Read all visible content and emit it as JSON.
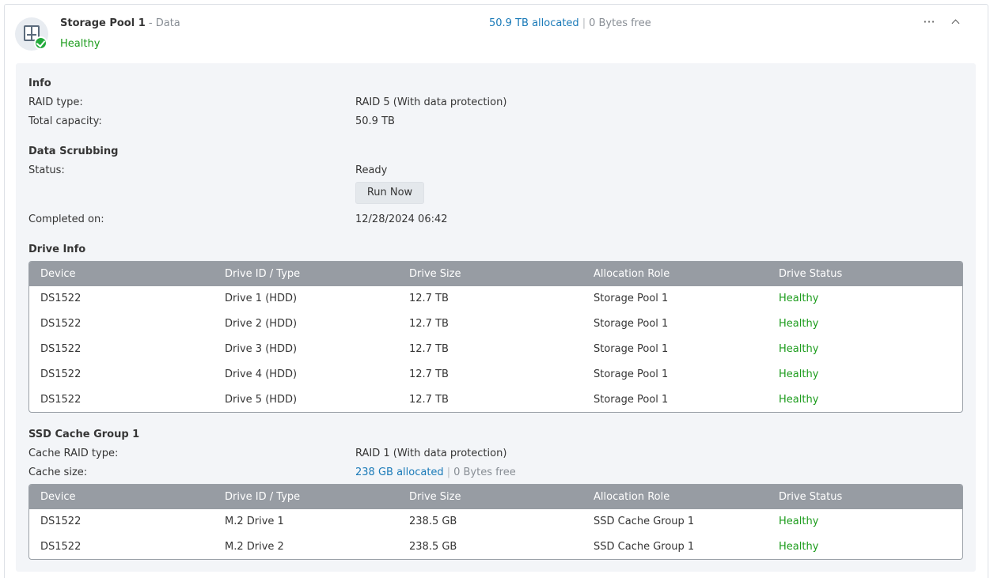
{
  "pool": {
    "name": "Storage Pool 1",
    "type_suffix": "- Data",
    "status": "Healthy",
    "allocated": "50.9 TB allocated",
    "separator": "|",
    "free": "0 Bytes free",
    "icon": "nas-icon",
    "status_icon": "check-circle-icon"
  },
  "header_actions": {
    "more": "···",
    "more_icon": "more-horizontal-icon",
    "collapse_icon": "chevron-up-icon"
  },
  "info": {
    "title": "Info",
    "raid_type_label": "RAID type:",
    "raid_type_value": "RAID 5 (With data protection)",
    "capacity_label": "Total capacity:",
    "capacity_value": "50.9 TB"
  },
  "scrubbing": {
    "title": "Data Scrubbing",
    "status_label": "Status:",
    "status_value": "Ready",
    "run_button": "Run Now",
    "completed_label": "Completed on:",
    "completed_value": "12/28/2024 06:42"
  },
  "drive_info": {
    "title": "Drive Info",
    "columns": [
      "Device",
      "Drive ID / Type",
      "Drive Size",
      "Allocation Role",
      "Drive Status"
    ],
    "rows": [
      [
        "DS1522",
        "Drive 1 (HDD)",
        "12.7 TB",
        "Storage Pool 1",
        "Healthy"
      ],
      [
        "DS1522",
        "Drive 2 (HDD)",
        "12.7 TB",
        "Storage Pool 1",
        "Healthy"
      ],
      [
        "DS1522",
        "Drive 3 (HDD)",
        "12.7 TB",
        "Storage Pool 1",
        "Healthy"
      ],
      [
        "DS1522",
        "Drive 4 (HDD)",
        "12.7 TB",
        "Storage Pool 1",
        "Healthy"
      ],
      [
        "DS1522",
        "Drive 5 (HDD)",
        "12.7 TB",
        "Storage Pool 1",
        "Healthy"
      ]
    ]
  },
  "ssd_cache": {
    "title": "SSD Cache Group 1",
    "raid_label": "Cache RAID type:",
    "raid_value": "RAID 1 (With data protection)",
    "size_label": "Cache size:",
    "allocated": "238 GB allocated",
    "separator": "|",
    "free": "0 Bytes free",
    "columns": [
      "Device",
      "Drive ID / Type",
      "Drive Size",
      "Allocation Role",
      "Drive Status"
    ],
    "rows": [
      [
        "DS1522",
        "M.2 Drive 1",
        "238.5 GB",
        "SSD Cache Group 1",
        "Healthy"
      ],
      [
        "DS1522",
        "M.2 Drive 2",
        "238.5 GB",
        "SSD Cache Group 1",
        "Healthy"
      ]
    ]
  },
  "colors": {
    "healthy": "#1c9c1c",
    "link": "#1a7ab8",
    "table_header": "#979ca3",
    "panel_bg": "#f3f5f8"
  }
}
